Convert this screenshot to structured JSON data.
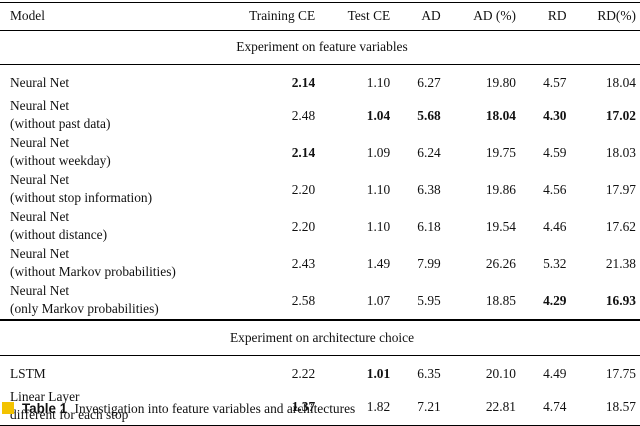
{
  "columns": [
    "Model",
    "Training CE",
    "Test CE",
    "AD",
    "AD (%)",
    "RD",
    "RD(%)"
  ],
  "sections": [
    {
      "title": "Experiment on feature variables",
      "rows": [
        {
          "model": [
            "Neural Net"
          ],
          "values": [
            "2.14",
            "1.10",
            "6.27",
            "19.80",
            "4.57",
            "18.04"
          ],
          "bold": [
            true,
            false,
            false,
            false,
            false,
            false
          ]
        },
        {
          "model": [
            "Neural Net",
            "(without past data)"
          ],
          "values": [
            "2.48",
            "1.04",
            "5.68",
            "18.04",
            "4.30",
            "17.02"
          ],
          "bold": [
            false,
            true,
            true,
            true,
            true,
            true
          ]
        },
        {
          "model": [
            "Neural Net",
            "(without weekday)"
          ],
          "values": [
            "2.14",
            "1.09",
            "6.24",
            "19.75",
            "4.59",
            "18.03"
          ],
          "bold": [
            true,
            false,
            false,
            false,
            false,
            false
          ]
        },
        {
          "model": [
            "Neural Net",
            "(without stop information)"
          ],
          "values": [
            "2.20",
            "1.10",
            "6.38",
            "19.86",
            "4.56",
            "17.97"
          ],
          "bold": [
            false,
            false,
            false,
            false,
            false,
            false
          ]
        },
        {
          "model": [
            "Neural Net",
            "(without distance)"
          ],
          "values": [
            "2.20",
            "1.10",
            "6.18",
            "19.54",
            "4.46",
            "17.62"
          ],
          "bold": [
            false,
            false,
            false,
            false,
            false,
            false
          ]
        },
        {
          "model": [
            "Neural Net",
            "(without Markov probabilities)"
          ],
          "values": [
            "2.43",
            "1.49",
            "7.99",
            "26.26",
            "5.32",
            "21.38"
          ],
          "bold": [
            false,
            false,
            false,
            false,
            false,
            false
          ]
        },
        {
          "model": [
            "Neural Net",
            "(only Markov probabilities)"
          ],
          "values": [
            "2.58",
            "1.07",
            "5.95",
            "18.85",
            "4.29",
            "16.93"
          ],
          "bold": [
            false,
            false,
            false,
            false,
            true,
            true
          ]
        }
      ]
    },
    {
      "title": "Experiment on architecture choice",
      "rows": [
        {
          "model": [
            "LSTM"
          ],
          "values": [
            "2.22",
            "1.01",
            "6.35",
            "20.10",
            "4.49",
            "17.75"
          ],
          "bold": [
            false,
            true,
            false,
            false,
            false,
            false
          ]
        },
        {
          "model": [
            "Linear Layer",
            "different for each stop"
          ],
          "values": [
            "1.37",
            "1.82",
            "7.21",
            "22.81",
            "4.74",
            "18.57"
          ],
          "bold": [
            true,
            false,
            false,
            false,
            false,
            false
          ]
        }
      ]
    }
  ],
  "caption": {
    "label": "Table 1",
    "text": "Investigation into feature variables and architectures",
    "marker_color": "#f3c300"
  }
}
